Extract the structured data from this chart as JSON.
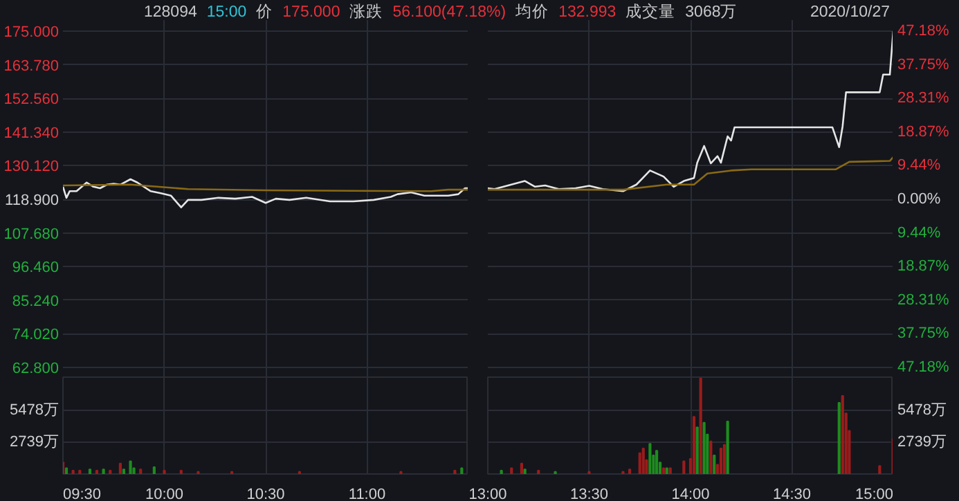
{
  "chart_data": [
    {
      "type": "line",
      "annotations": [
        "128094",
        "15:00",
        "价",
        "175.000",
        "涨跌",
        "56.100(47.18%)",
        "均价",
        "132.993",
        "成交量",
        "3068万",
        "2020/10/27"
      ],
      "xlim": [
        9.5,
        11.5
      ],
      "xticks": [
        {
          "value": 9.5,
          "label": null
        },
        {
          "value": 10,
          "label": null
        },
        {
          "value": 10.5,
          "label": null
        },
        {
          "value": 11,
          "label": null
        }
      ],
      "ylim": [
        62.8,
        175
      ],
      "yticks": [
        {
          "value": 62.8,
          "label": "62.800"
        },
        {
          "value": 74.02,
          "label": "74.020"
        },
        {
          "value": 85.24,
          "label": "85.240"
        },
        {
          "value": 96.46,
          "label": "96.460"
        },
        {
          "value": 107.68,
          "label": "107.680"
        },
        {
          "value": 118.9,
          "label": "118.900"
        },
        {
          "value": 130.12,
          "label": "130.120"
        },
        {
          "value": 141.34,
          "label": "141.340"
        },
        {
          "value": 152.56,
          "label": "152.560"
        },
        {
          "value": 163.78,
          "label": "163.780"
        },
        {
          "value": 175,
          "label": "175.000"
        }
      ],
      "tick_labels": "y",
      "grid": true,
      "series": [
        {
          "color": "#e6e6e6",
          "x": [
            9.5,
            9.517,
            9.533,
            9.567,
            9.617,
            9.65,
            9.683,
            9.717,
            9.75,
            9.783,
            9.833,
            9.867,
            9.933,
            9.983,
            10.033,
            10.083,
            10.117,
            10.183,
            10.267,
            10.35,
            10.433,
            10.5,
            10.55,
            10.617,
            10.7,
            10.817,
            10.933,
            11.033,
            11.117,
            11.15,
            11.217,
            11.283,
            11.35,
            11.4,
            11.45,
            11.483,
            11.5
          ],
          "values": [
            123.1,
            119.4,
            121.6,
            121.6,
            124.5,
            123.1,
            122.6,
            123.8,
            124.1,
            123.8,
            125.6,
            124.5,
            121.6,
            120.9,
            120.1,
            116.2,
            118.7,
            118.7,
            119.4,
            119.1,
            119.7,
            117.7,
            119.1,
            118.7,
            119.4,
            118.2,
            118.2,
            118.7,
            119.7,
            120.6,
            121.2,
            120.1,
            120.1,
            120.1,
            120.6,
            122.6,
            122.6
          ]
        },
        {
          "color": "#8b6a14",
          "x": [
            9.5,
            9.833,
            10.117,
            10.5,
            11.317,
            11.4,
            11.5
          ],
          "values": [
            123.5,
            123.8,
            122.3,
            121.9,
            121.6,
            122.1,
            122.1
          ]
        }
      ]
    },
    {
      "type": "line",
      "xlim": [
        13,
        15
      ],
      "xticks": [
        {
          "value": 13,
          "label": null
        },
        {
          "value": 13.5,
          "label": null
        },
        {
          "value": 14,
          "label": null
        },
        {
          "value": 14.5,
          "label": null
        },
        {
          "value": 15,
          "label": null
        }
      ],
      "ylim": [
        62.8,
        175
      ],
      "y2lim": [
        -47.18,
        47.18
      ],
      "y2ticks": [
        {
          "value": -47.18,
          "label": "47.18%"
        },
        {
          "value": -37.75,
          "label": "37.75%"
        },
        {
          "value": -28.31,
          "label": "28.31%"
        },
        {
          "value": -18.87,
          "label": "18.87%"
        },
        {
          "value": -9.44,
          "label": "9.44%"
        },
        {
          "value": 0,
          "label": "0.00%"
        },
        {
          "value": 9.44,
          "label": "9.44%"
        },
        {
          "value": 18.87,
          "label": "18.87%"
        },
        {
          "value": 28.31,
          "label": "28.31%"
        },
        {
          "value": 37.75,
          "label": "37.75%"
        },
        {
          "value": 47.18,
          "label": "47.18%"
        }
      ],
      "tick_labels": "y",
      "grid": true,
      "series": [
        {
          "color": "#e6e6e6",
          "x": [
            13.0,
            13.033,
            13.1,
            13.183,
            13.233,
            13.283,
            13.35,
            13.433,
            13.5,
            13.567,
            13.667,
            13.733,
            13.8,
            13.867,
            13.917,
            13.967,
            14.017,
            14.033,
            14.067,
            14.1,
            14.133,
            14.15,
            14.183,
            14.2,
            14.217,
            14.7,
            14.733,
            14.75,
            14.767,
            14.933,
            14.95,
            14.983,
            15.0
          ],
          "values": [
            122.6,
            122.3,
            123.5,
            125.0,
            123.1,
            123.5,
            122.3,
            122.6,
            123.4,
            122.3,
            121.6,
            123.8,
            128.5,
            126.5,
            123.1,
            125.0,
            126.0,
            131.1,
            136.7,
            130.9,
            133.3,
            131.1,
            139.9,
            138.5,
            142.9,
            142.9,
            136.3,
            143.2,
            154.6,
            154.6,
            160.5,
            160.5,
            175.0
          ]
        },
        {
          "color": "#8b6a14",
          "x": [
            13.0,
            13.667,
            13.883,
            14.017,
            14.083,
            14.2,
            14.3,
            14.717,
            14.783,
            14.983,
            15.0
          ],
          "values": [
            122.1,
            122.1,
            123.8,
            123.8,
            127.5,
            128.5,
            128.9,
            128.9,
            131.4,
            131.7,
            133.0
          ]
        }
      ]
    },
    {
      "type": "bar",
      "xlim": [
        9.5,
        11.5
      ],
      "xticks": [
        {
          "value": 9.5,
          "label": "09:30"
        },
        {
          "value": 10,
          "label": "10:00"
        },
        {
          "value": 10.5,
          "label": "10:30"
        },
        {
          "value": 11,
          "label": "11:00"
        }
      ],
      "ylim": [
        0,
        8300
      ],
      "yticks": [
        {
          "value": 2739,
          "label": "2739万"
        },
        {
          "value": 5478,
          "label": "5478万"
        }
      ],
      "grid": true,
      "x": [
        9.5,
        9.517,
        9.55,
        9.583,
        9.633,
        9.667,
        9.7,
        9.733,
        9.783,
        9.8,
        9.833,
        9.85,
        9.883,
        9.95,
        10.0,
        10.083,
        10.167,
        10.333,
        10.667,
        11.167,
        11.433,
        11.467
      ],
      "values": [
        1000,
        500,
        300,
        300,
        400,
        300,
        400,
        300,
        900,
        400,
        1100,
        500,
        400,
        600,
        300,
        300,
        200,
        200,
        200,
        200,
        300,
        500
      ],
      "colors": [
        "#9b1c1c",
        "#1e8c1e",
        "#9b1c1c",
        "#9b1c1c",
        "#1e8c1e",
        "#9b1c1c",
        "#1e8c1e",
        "#9b1c1c",
        "#9b1c1c",
        "#1e8c1e",
        "#1e8c1e",
        "#1e8c1e",
        "#9b1c1c",
        "#1e8c1e",
        "#9b1c1c",
        "#9b1c1c",
        "#9b1c1c",
        "#9b1c1c",
        "#9b1c1c",
        "#9b1c1c",
        "#9b1c1c",
        "#1e8c1e"
      ]
    },
    {
      "type": "bar",
      "xlim": [
        13,
        15
      ],
      "xticks": [
        {
          "value": 13,
          "label": "13:00"
        },
        {
          "value": 13.5,
          "label": "13:30"
        },
        {
          "value": 14,
          "label": "14:00"
        },
        {
          "value": 14.5,
          "label": "14:30"
        },
        {
          "value": 15,
          "label": "15:00"
        }
      ],
      "ylim": [
        0,
        8300
      ],
      "y2lim": [
        0,
        8300
      ],
      "y2ticks": [
        {
          "value": 2739,
          "label": "2739万"
        },
        {
          "value": 5478,
          "label": "5478万"
        }
      ],
      "grid": true,
      "x": [
        13.067,
        13.117,
        13.167,
        13.183,
        13.25,
        13.333,
        13.5,
        13.667,
        13.7,
        13.75,
        13.767,
        13.783,
        13.8,
        13.817,
        13.833,
        13.85,
        13.867,
        13.883,
        13.9,
        13.967,
        14.0,
        14.017,
        14.033,
        14.05,
        14.067,
        14.083,
        14.1,
        14.117,
        14.133,
        14.15,
        14.167,
        14.183,
        14.733,
        14.75,
        14.767,
        14.783,
        14.933,
        15.0
      ],
      "values": [
        300,
        500,
        900,
        400,
        300,
        200,
        200,
        200,
        400,
        1800,
        2200,
        1200,
        2600,
        1600,
        2000,
        1000,
        500,
        500,
        500,
        1100,
        1300,
        4900,
        4000,
        8200,
        4400,
        3400,
        2800,
        1600,
        800,
        2200,
        2500,
        4500,
        6100,
        6700,
        5200,
        3700,
        700,
        3000
      ],
      "colors": [
        "#1e8c1e",
        "#9b1c1c",
        "#9b1c1c",
        "#1e8c1e",
        "#9b1c1c",
        "#1e8c1e",
        "#9b1c1c",
        "#9b1c1c",
        "#9b1c1c",
        "#9b1c1c",
        "#9b1c1c",
        "#9b1c1c",
        "#1e8c1e",
        "#1e8c1e",
        "#1e8c1e",
        "#1e8c1e",
        "#9b1c1c",
        "#1e8c1e",
        "#9b1c1c",
        "#9b1c1c",
        "#9b1c1c",
        "#9b1c1c",
        "#1e8c1e",
        "#9b1c1c",
        "#1e8c1e",
        "#1e8c1e",
        "#9b1c1c",
        "#1e8c1e",
        "#9b1c1c",
        "#9b1c1c",
        "#9b1c1c",
        "#1e8c1e",
        "#1e8c1e",
        "#9b1c1c",
        "#9b1c1c",
        "#9b1c1c",
        "#9b1c1c",
        "#9b1c1c"
      ]
    }
  ]
}
